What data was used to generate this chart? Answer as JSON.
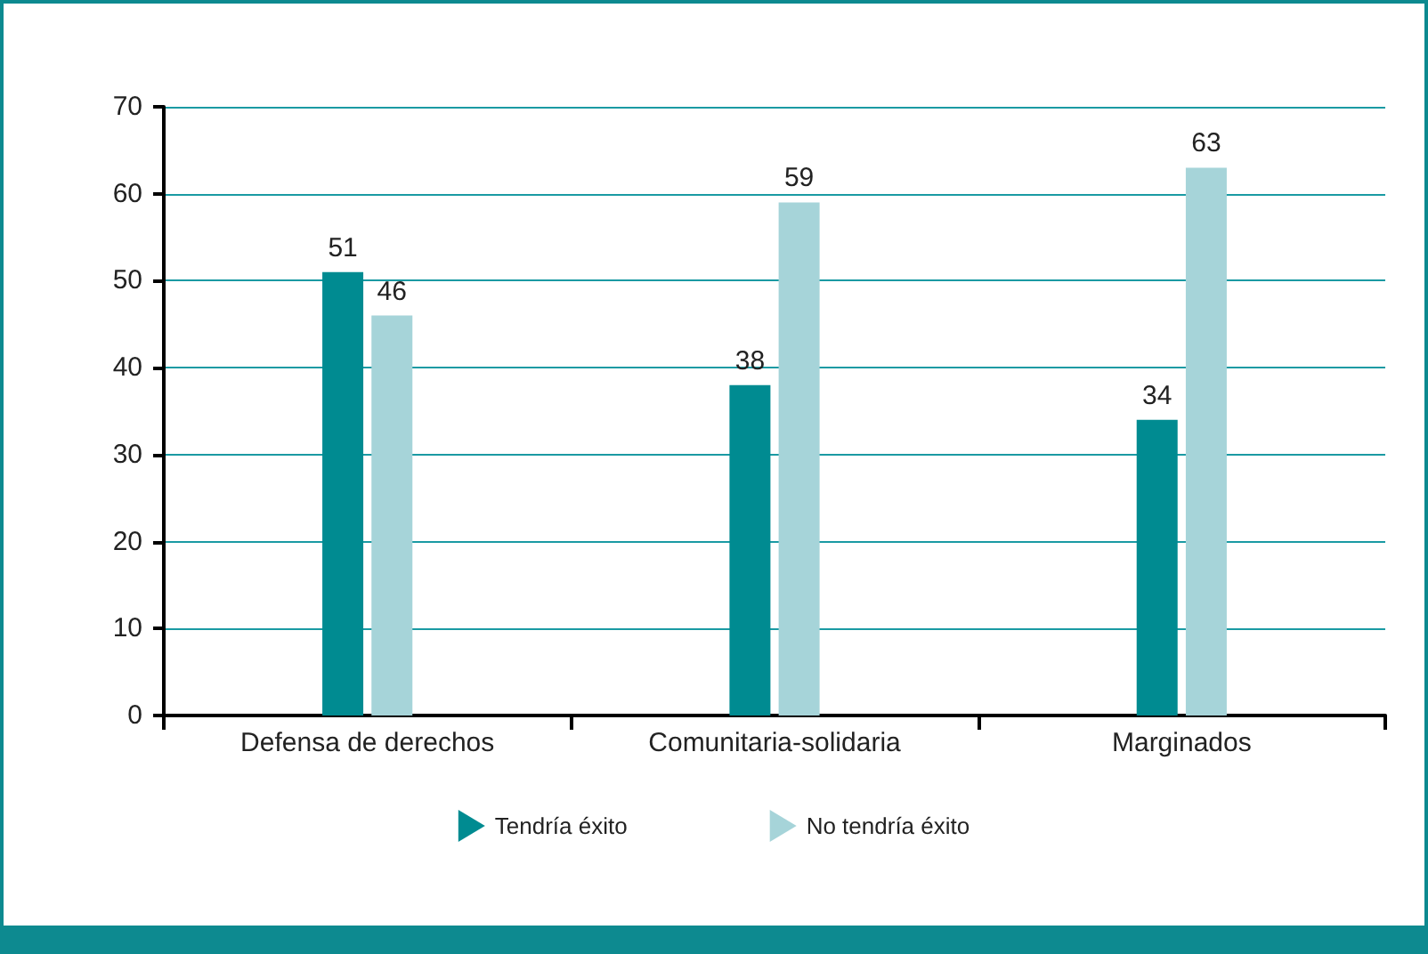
{
  "chart_data": {
    "type": "bar",
    "categories": [
      "Defensa de derechos",
      "Comunitaria-solidaria",
      "Marginados"
    ],
    "series": [
      {
        "name": "Tendría éxito",
        "color": "#008b91",
        "values": [
          51,
          38,
          34
        ]
      },
      {
        "name": "No tendría éxito",
        "color": "#a6d4d9",
        "values": [
          46,
          59,
          63
        ]
      }
    ],
    "ylim": [
      0,
      70
    ],
    "yticks": [
      0,
      10,
      20,
      30,
      40,
      50,
      60,
      70
    ],
    "grid": "y",
    "legend": "bottom",
    "data_labels": true
  }
}
